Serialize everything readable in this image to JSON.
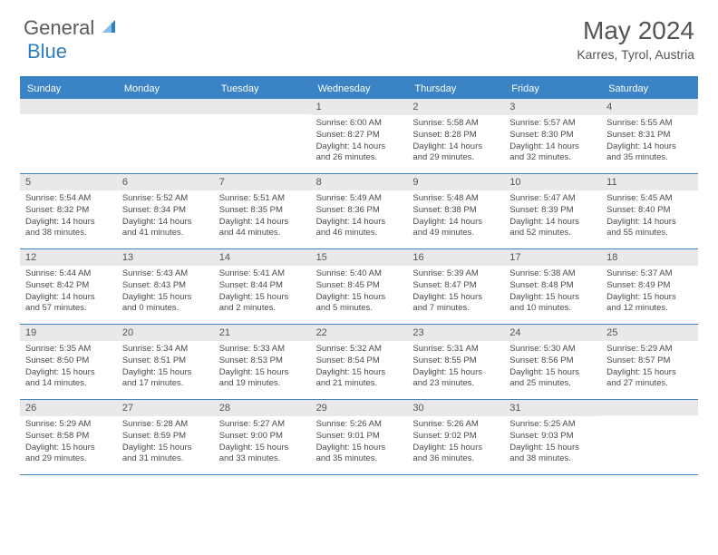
{
  "brand": {
    "part1": "General",
    "part2": "Blue"
  },
  "title": "May 2024",
  "location": "Karres, Tyrol, Austria",
  "weekdays": [
    "Sunday",
    "Monday",
    "Tuesday",
    "Wednesday",
    "Thursday",
    "Friday",
    "Saturday"
  ],
  "colors": {
    "header_bar": "#3a83c5",
    "daynum_bg": "#e9e9e9",
    "title_text": "#555555",
    "logo_grey": "#5a5a5a",
    "logo_blue": "#2d7fc4",
    "body_text": "#4a4a4a"
  },
  "weeks": [
    [
      {
        "d": "",
        "sr": "",
        "ss": "",
        "dl": ""
      },
      {
        "d": "",
        "sr": "",
        "ss": "",
        "dl": ""
      },
      {
        "d": "",
        "sr": "",
        "ss": "",
        "dl": ""
      },
      {
        "d": "1",
        "sr": "Sunrise: 6:00 AM",
        "ss": "Sunset: 8:27 PM",
        "dl": "Daylight: 14 hours and 26 minutes."
      },
      {
        "d": "2",
        "sr": "Sunrise: 5:58 AM",
        "ss": "Sunset: 8:28 PM",
        "dl": "Daylight: 14 hours and 29 minutes."
      },
      {
        "d": "3",
        "sr": "Sunrise: 5:57 AM",
        "ss": "Sunset: 8:30 PM",
        "dl": "Daylight: 14 hours and 32 minutes."
      },
      {
        "d": "4",
        "sr": "Sunrise: 5:55 AM",
        "ss": "Sunset: 8:31 PM",
        "dl": "Daylight: 14 hours and 35 minutes."
      }
    ],
    [
      {
        "d": "5",
        "sr": "Sunrise: 5:54 AM",
        "ss": "Sunset: 8:32 PM",
        "dl": "Daylight: 14 hours and 38 minutes."
      },
      {
        "d": "6",
        "sr": "Sunrise: 5:52 AM",
        "ss": "Sunset: 8:34 PM",
        "dl": "Daylight: 14 hours and 41 minutes."
      },
      {
        "d": "7",
        "sr": "Sunrise: 5:51 AM",
        "ss": "Sunset: 8:35 PM",
        "dl": "Daylight: 14 hours and 44 minutes."
      },
      {
        "d": "8",
        "sr": "Sunrise: 5:49 AM",
        "ss": "Sunset: 8:36 PM",
        "dl": "Daylight: 14 hours and 46 minutes."
      },
      {
        "d": "9",
        "sr": "Sunrise: 5:48 AM",
        "ss": "Sunset: 8:38 PM",
        "dl": "Daylight: 14 hours and 49 minutes."
      },
      {
        "d": "10",
        "sr": "Sunrise: 5:47 AM",
        "ss": "Sunset: 8:39 PM",
        "dl": "Daylight: 14 hours and 52 minutes."
      },
      {
        "d": "11",
        "sr": "Sunrise: 5:45 AM",
        "ss": "Sunset: 8:40 PM",
        "dl": "Daylight: 14 hours and 55 minutes."
      }
    ],
    [
      {
        "d": "12",
        "sr": "Sunrise: 5:44 AM",
        "ss": "Sunset: 8:42 PM",
        "dl": "Daylight: 14 hours and 57 minutes."
      },
      {
        "d": "13",
        "sr": "Sunrise: 5:43 AM",
        "ss": "Sunset: 8:43 PM",
        "dl": "Daylight: 15 hours and 0 minutes."
      },
      {
        "d": "14",
        "sr": "Sunrise: 5:41 AM",
        "ss": "Sunset: 8:44 PM",
        "dl": "Daylight: 15 hours and 2 minutes."
      },
      {
        "d": "15",
        "sr": "Sunrise: 5:40 AM",
        "ss": "Sunset: 8:45 PM",
        "dl": "Daylight: 15 hours and 5 minutes."
      },
      {
        "d": "16",
        "sr": "Sunrise: 5:39 AM",
        "ss": "Sunset: 8:47 PM",
        "dl": "Daylight: 15 hours and 7 minutes."
      },
      {
        "d": "17",
        "sr": "Sunrise: 5:38 AM",
        "ss": "Sunset: 8:48 PM",
        "dl": "Daylight: 15 hours and 10 minutes."
      },
      {
        "d": "18",
        "sr": "Sunrise: 5:37 AM",
        "ss": "Sunset: 8:49 PM",
        "dl": "Daylight: 15 hours and 12 minutes."
      }
    ],
    [
      {
        "d": "19",
        "sr": "Sunrise: 5:35 AM",
        "ss": "Sunset: 8:50 PM",
        "dl": "Daylight: 15 hours and 14 minutes."
      },
      {
        "d": "20",
        "sr": "Sunrise: 5:34 AM",
        "ss": "Sunset: 8:51 PM",
        "dl": "Daylight: 15 hours and 17 minutes."
      },
      {
        "d": "21",
        "sr": "Sunrise: 5:33 AM",
        "ss": "Sunset: 8:53 PM",
        "dl": "Daylight: 15 hours and 19 minutes."
      },
      {
        "d": "22",
        "sr": "Sunrise: 5:32 AM",
        "ss": "Sunset: 8:54 PM",
        "dl": "Daylight: 15 hours and 21 minutes."
      },
      {
        "d": "23",
        "sr": "Sunrise: 5:31 AM",
        "ss": "Sunset: 8:55 PM",
        "dl": "Daylight: 15 hours and 23 minutes."
      },
      {
        "d": "24",
        "sr": "Sunrise: 5:30 AM",
        "ss": "Sunset: 8:56 PM",
        "dl": "Daylight: 15 hours and 25 minutes."
      },
      {
        "d": "25",
        "sr": "Sunrise: 5:29 AM",
        "ss": "Sunset: 8:57 PM",
        "dl": "Daylight: 15 hours and 27 minutes."
      }
    ],
    [
      {
        "d": "26",
        "sr": "Sunrise: 5:29 AM",
        "ss": "Sunset: 8:58 PM",
        "dl": "Daylight: 15 hours and 29 minutes."
      },
      {
        "d": "27",
        "sr": "Sunrise: 5:28 AM",
        "ss": "Sunset: 8:59 PM",
        "dl": "Daylight: 15 hours and 31 minutes."
      },
      {
        "d": "28",
        "sr": "Sunrise: 5:27 AM",
        "ss": "Sunset: 9:00 PM",
        "dl": "Daylight: 15 hours and 33 minutes."
      },
      {
        "d": "29",
        "sr": "Sunrise: 5:26 AM",
        "ss": "Sunset: 9:01 PM",
        "dl": "Daylight: 15 hours and 35 minutes."
      },
      {
        "d": "30",
        "sr": "Sunrise: 5:26 AM",
        "ss": "Sunset: 9:02 PM",
        "dl": "Daylight: 15 hours and 36 minutes."
      },
      {
        "d": "31",
        "sr": "Sunrise: 5:25 AM",
        "ss": "Sunset: 9:03 PM",
        "dl": "Daylight: 15 hours and 38 minutes."
      },
      {
        "d": "",
        "sr": "",
        "ss": "",
        "dl": ""
      }
    ]
  ]
}
